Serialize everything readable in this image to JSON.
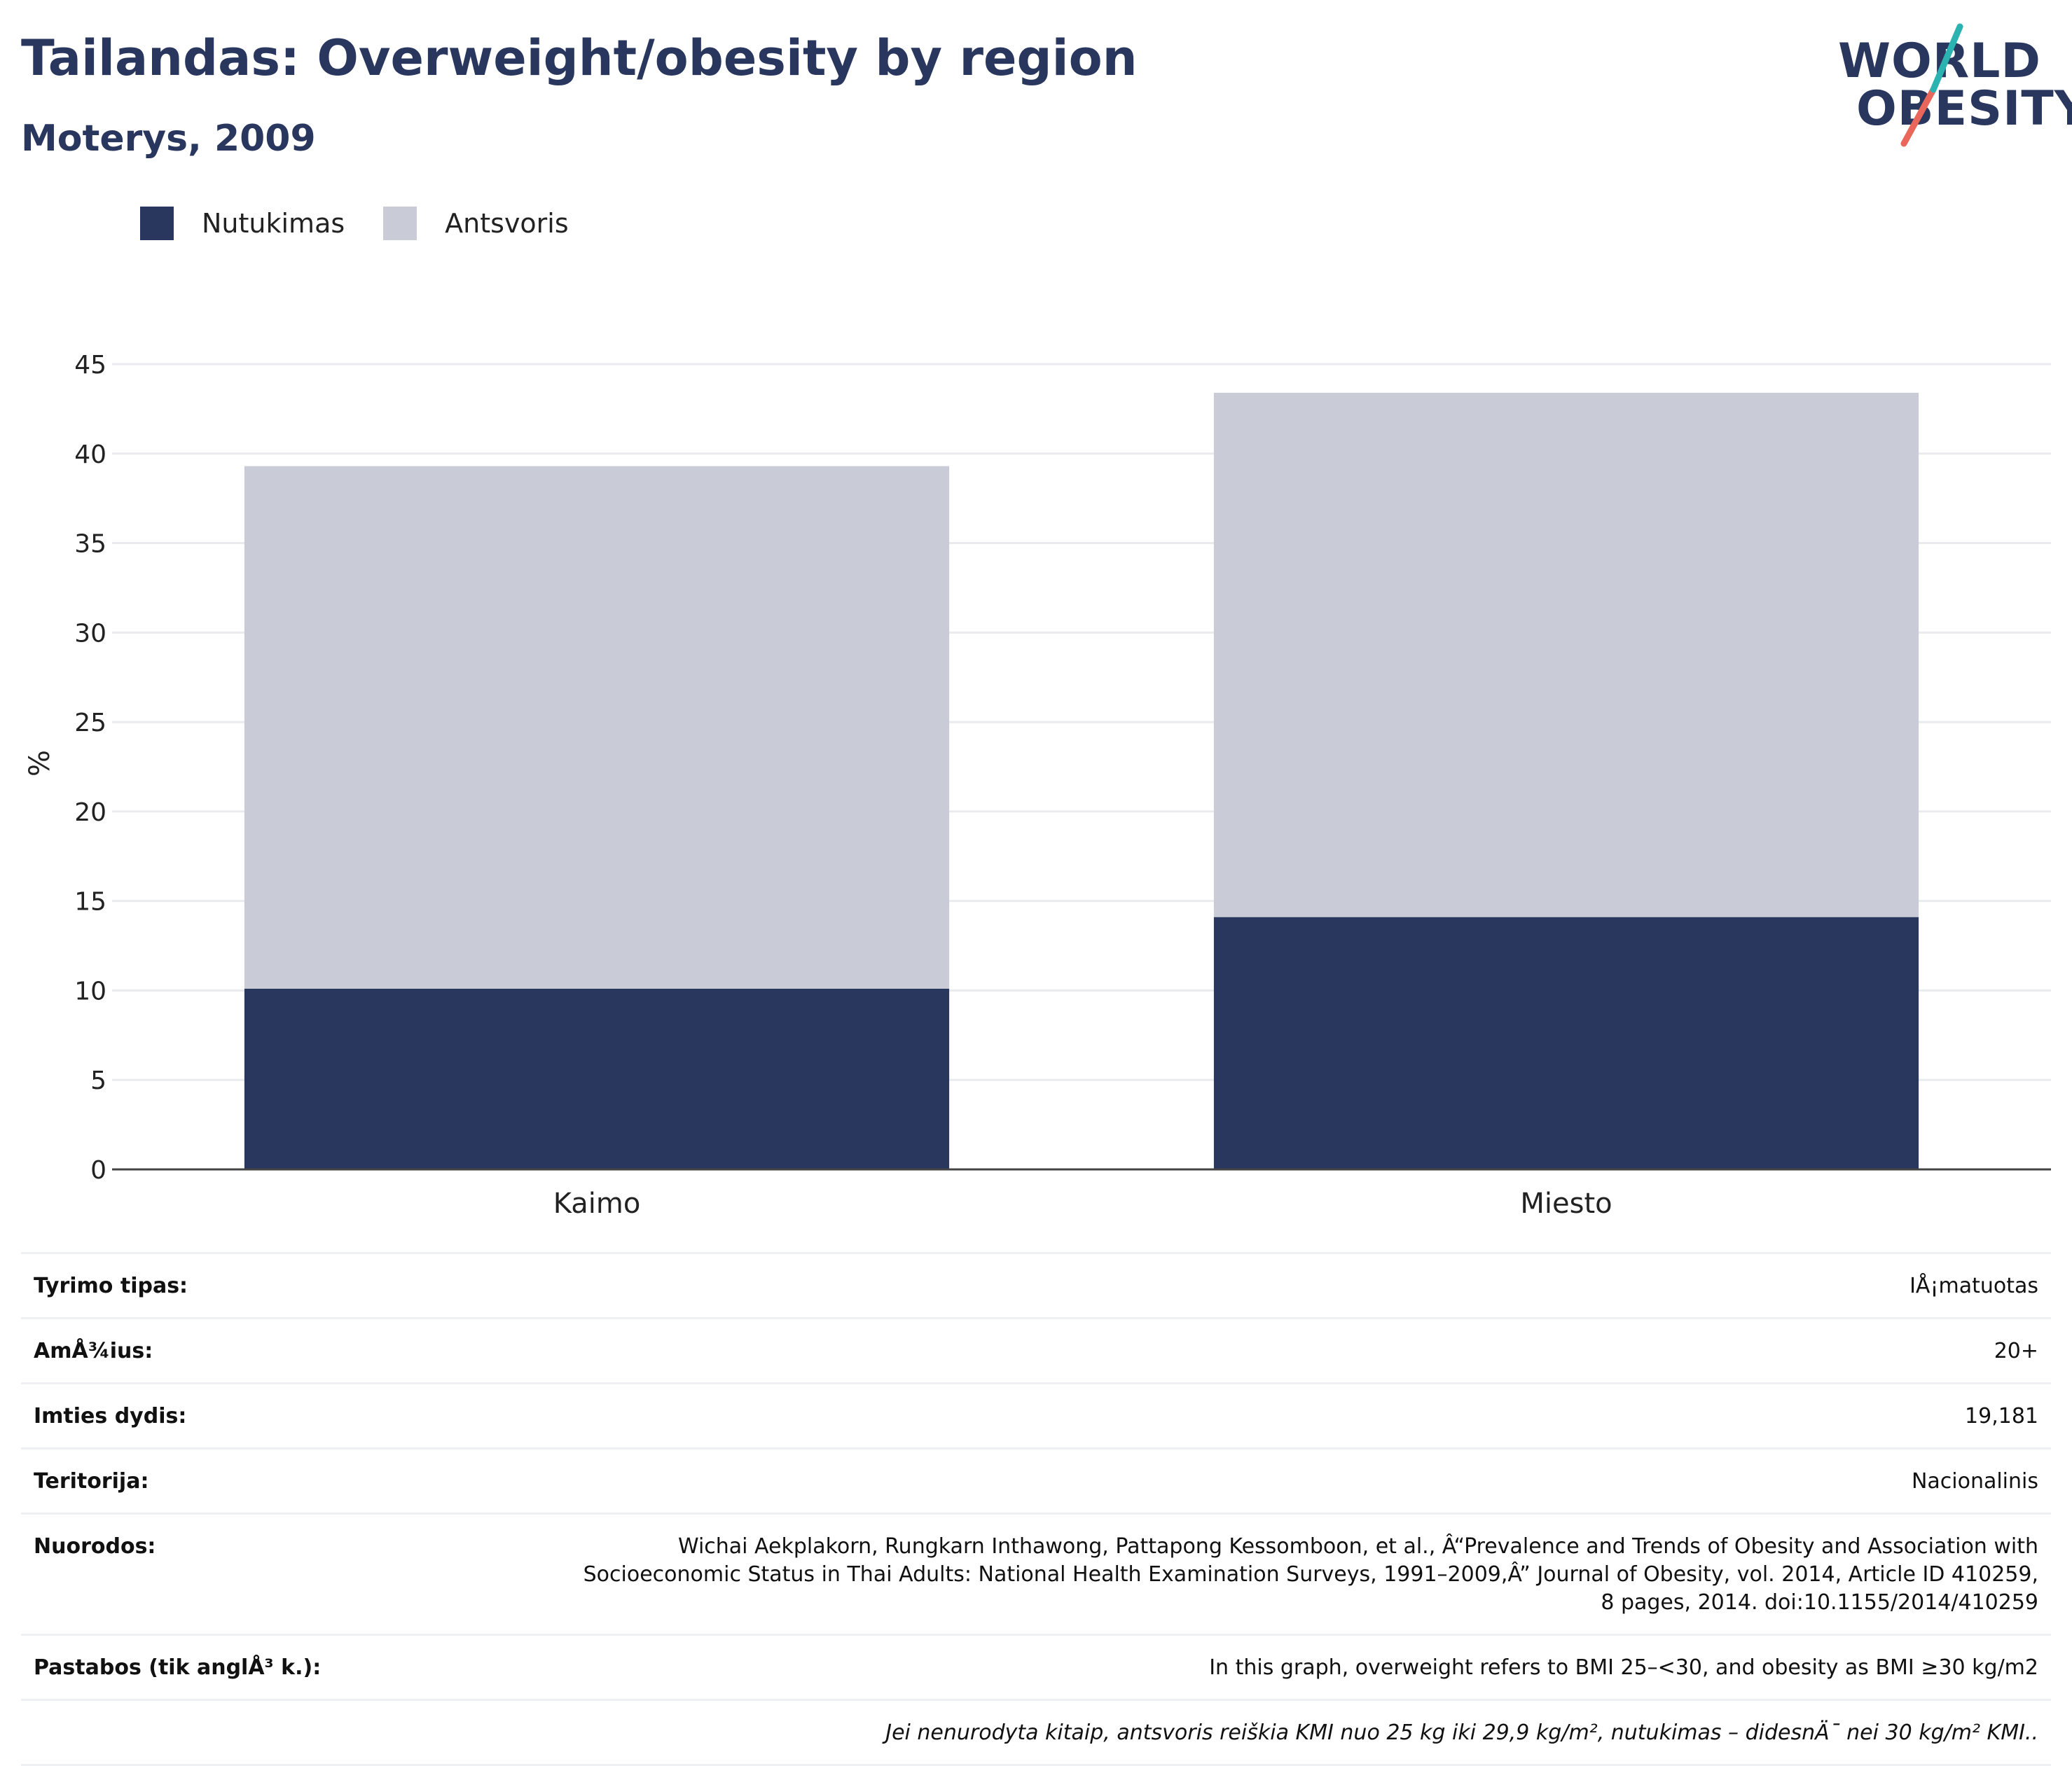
{
  "header": {
    "title": "Tailandas: Overweight/obesity by region",
    "subtitle": "Moterys, 2009"
  },
  "logo": {
    "line1": "WORLD",
    "line2": "OBESITY",
    "accent_teal": "#2bb3b1",
    "accent_coral": "#e8665a",
    "text_color": "#29375f"
  },
  "legend": {
    "items": [
      {
        "label": "Nutukimas",
        "color": "#29375f"
      },
      {
        "label": "Antsvoris",
        "color": "#c9cbd6"
      }
    ]
  },
  "chart_data": {
    "type": "bar",
    "stacked": true,
    "categories": [
      "Kaimo",
      "Miesto"
    ],
    "series": [
      {
        "name": "Nutukimas",
        "color": "#29375f",
        "values": [
          10.1,
          14.1
        ]
      },
      {
        "name": "Antsvoris",
        "color": "#c9cbd6",
        "values": [
          29.2,
          29.3
        ]
      }
    ],
    "ylabel": "%",
    "ylim": [
      0,
      45
    ],
    "yticks": [
      0,
      5,
      10,
      15,
      20,
      25,
      30,
      35,
      40,
      45
    ],
    "grid": true,
    "legend_position": "top-left"
  },
  "info": {
    "rows": [
      {
        "label": "Tyrimo tipas:",
        "value": "IÅ¡matuotas"
      },
      {
        "label": "AmÅ¾ius:",
        "value": "20+"
      },
      {
        "label": "Imties dydis:",
        "value": "19,181"
      },
      {
        "label": "Teritorija:",
        "value": "Nacionalinis"
      },
      {
        "label": "Nuorodos:",
        "value": "Wichai Aekplakorn, Rungkarn Inthawong, Pattapong Kessomboon, et al., Â“Prevalence and Trends of Obesity and Association with Socioeconomic Status in Thai Adults: National Health Examination Surveys, 1991–2009,Â” Journal of Obesity, vol. 2014, Article ID 410259, 8 pages, 2014. doi:10.1155/2014/410259"
      },
      {
        "label": "Pastabos (tik anglÅ³ k.):",
        "value": "In this graph, overweight refers to BMI 25–<30, and obesity as BMI ≥30 kg/m2"
      }
    ],
    "footnote": "Jei nenurodyta kitaip, antsvoris reiškia KMI nuo 25 kg iki 29,9 kg/m², nutukimas – didesnÄ¯ nei 30 kg/m² KMI.."
  }
}
